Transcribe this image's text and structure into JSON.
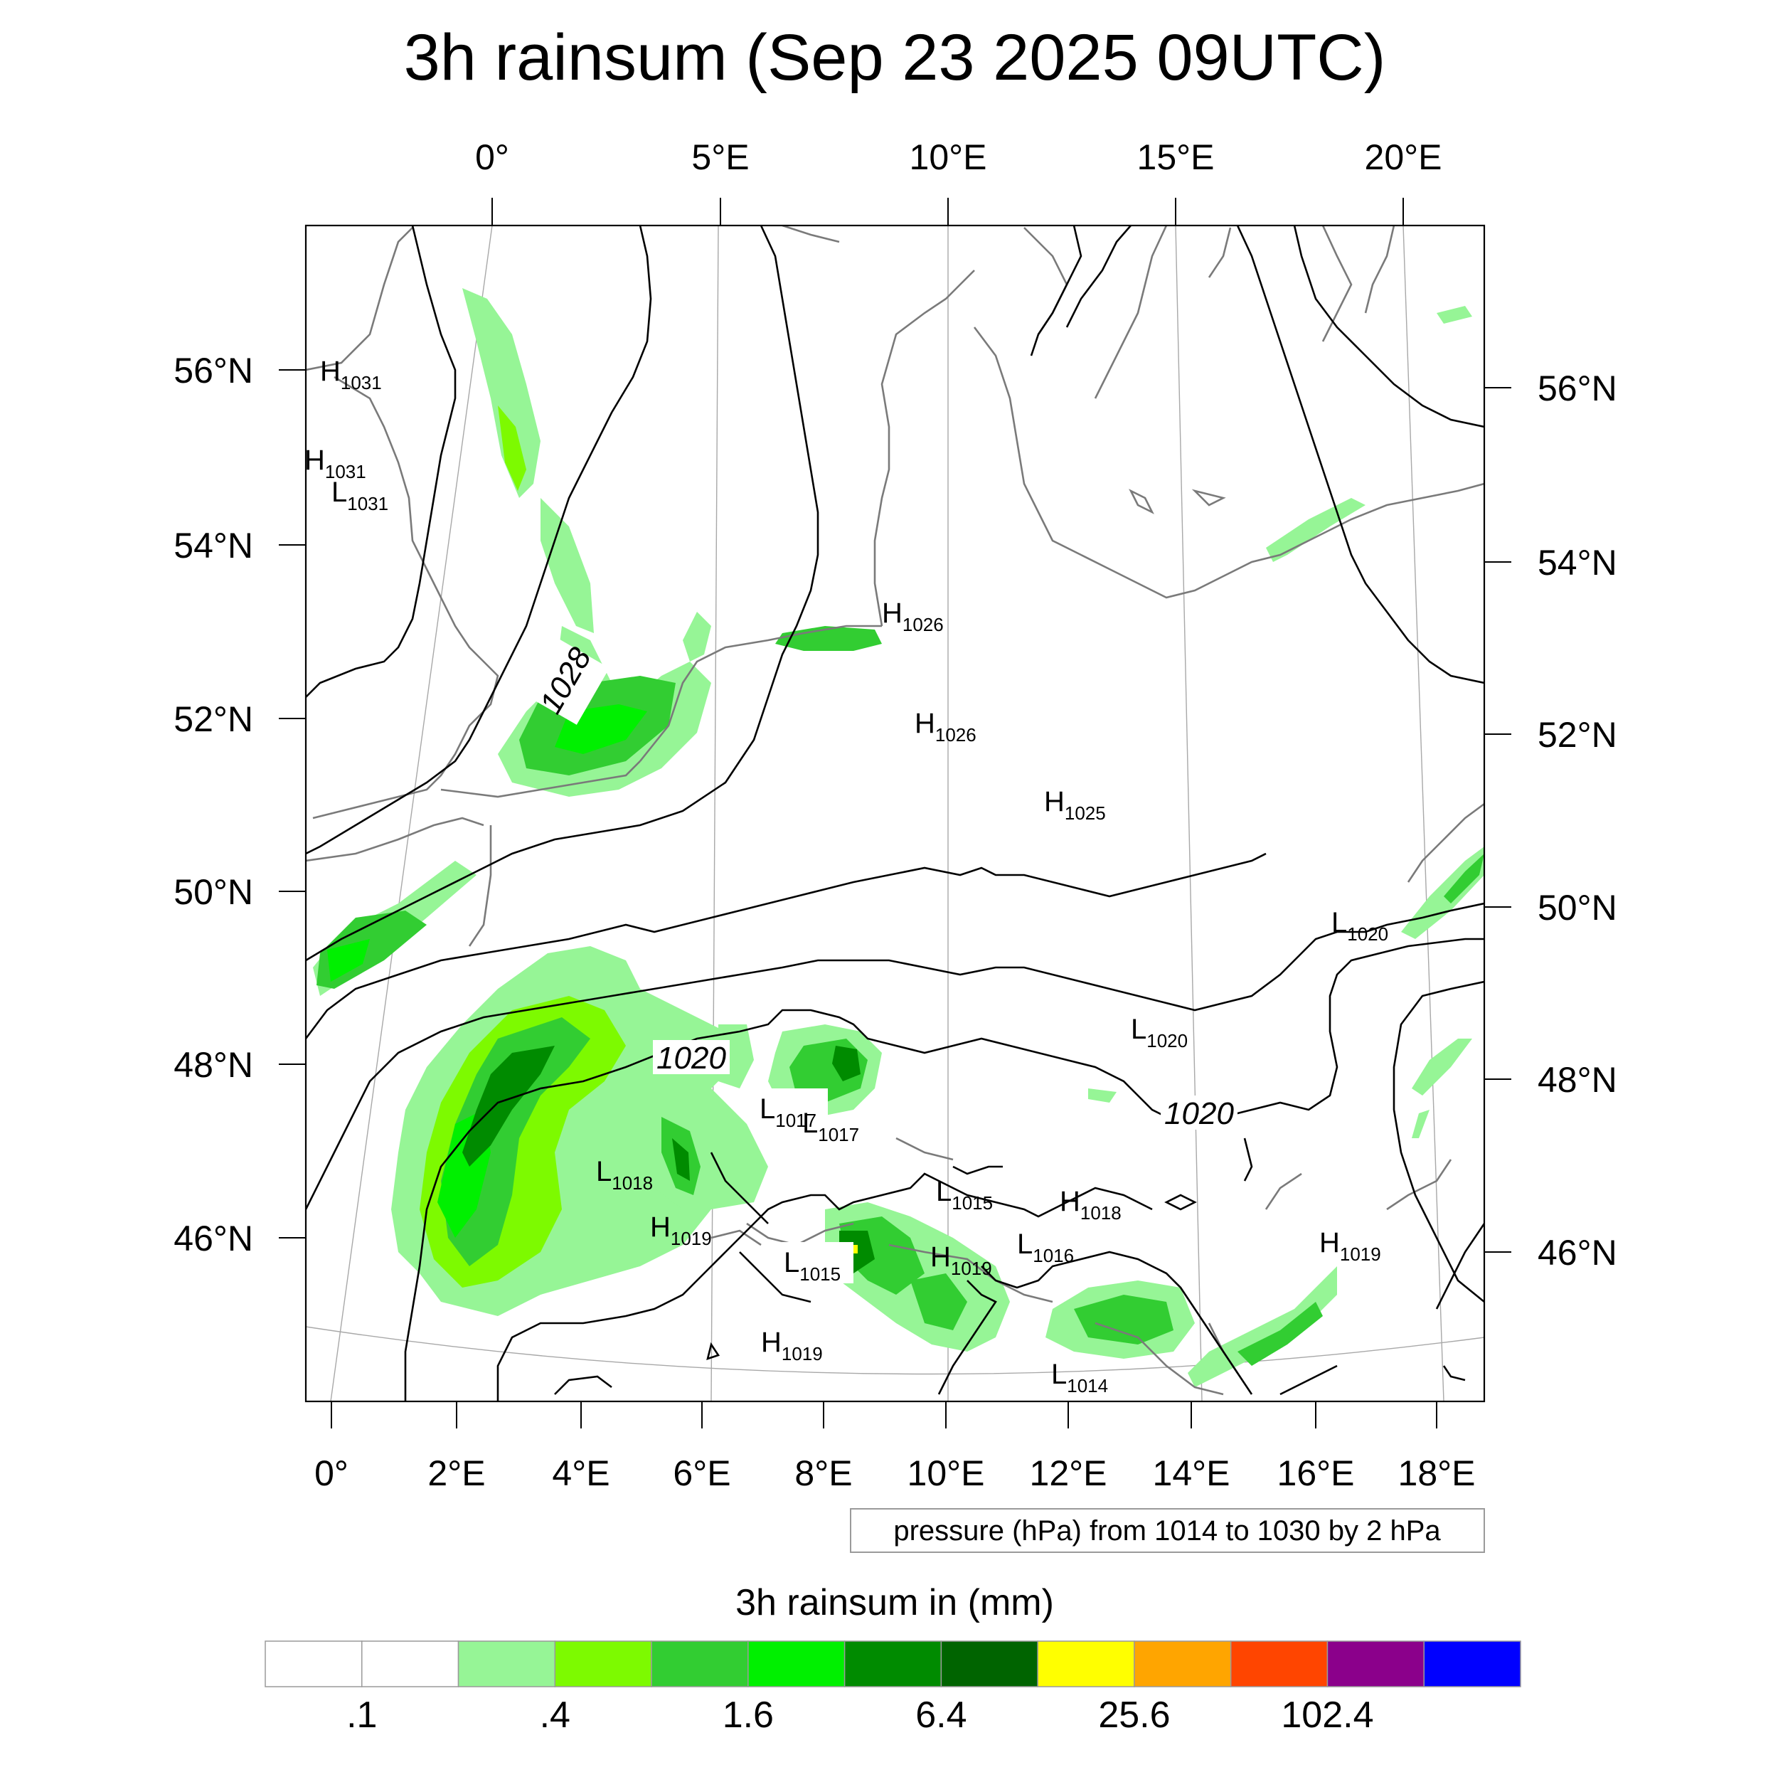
{
  "title": "3h rainsum (Sep 23 2025 09UTC)",
  "top_lon_labels": [
    "0°",
    "5°E",
    "10°E",
    "15°E",
    "20°E"
  ],
  "bottom_lon_labels": [
    "0°",
    "2°E",
    "4°E",
    "6°E",
    "8°E",
    "10°E",
    "12°E",
    "14°E",
    "16°E",
    "18°E"
  ],
  "left_lat_labels": [
    "56°N",
    "54°N",
    "52°N",
    "50°N",
    "48°N",
    "46°N"
  ],
  "right_lat_labels": [
    "56°N",
    "54°N",
    "52°N",
    "50°N",
    "48°N",
    "46°N"
  ],
  "isobar_labels": [
    "1028",
    "1020",
    "1020"
  ],
  "pressure_centers": [
    {
      "letter": "H",
      "value": "1031"
    },
    {
      "letter": "H",
      "value": "1031"
    },
    {
      "letter": "L",
      "value": "1031"
    },
    {
      "letter": "H",
      "value": "1026"
    },
    {
      "letter": "H",
      "value": "1026"
    },
    {
      "letter": "H",
      "value": "1025"
    },
    {
      "letter": "L",
      "value": "1020"
    },
    {
      "letter": "L",
      "value": "1020"
    },
    {
      "letter": "L",
      "value": "1017"
    },
    {
      "letter": "L",
      "value": "1017"
    },
    {
      "letter": "L",
      "value": "1018"
    },
    {
      "letter": "L",
      "value": "1015"
    },
    {
      "letter": "H",
      "value": "1018"
    },
    {
      "letter": "H",
      "value": "1019"
    },
    {
      "letter": "L",
      "value": "1015"
    },
    {
      "letter": "H",
      "value": "1019"
    },
    {
      "letter": "L",
      "value": "1016"
    },
    {
      "letter": "H",
      "value": "1019"
    },
    {
      "letter": "H",
      "value": "1019"
    },
    {
      "letter": "L",
      "value": "1014"
    }
  ],
  "contour_info": "pressure (hPa) from 1014 to 1030 by 2 hPa",
  "colorbar": {
    "title": "3h rainsum in (mm)",
    "colors": [
      "#ffffff",
      "#ffffff",
      "#96f596",
      "#7dfa00",
      "#32cd32",
      "#00f000",
      "#008b00",
      "#006400",
      "#ffff00",
      "#ffa500",
      "#ff4500",
      "#8b008b",
      "#0000ff"
    ],
    "tick_labels": [
      ".1",
      ".4",
      "1.6",
      "6.4",
      "25.6",
      "102.4"
    ]
  }
}
